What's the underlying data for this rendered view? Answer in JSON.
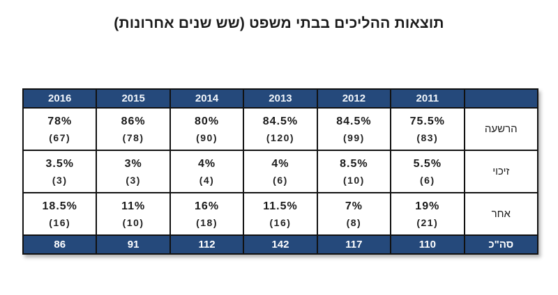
{
  "title": "תוצאות ההליכים בבתי משפט (שש שנים אחרונות)",
  "colors": {
    "header_bg": "#25497B",
    "border": "#111111",
    "header_text": "#F2F6FB",
    "body_text": "#1A1A1A",
    "page_bg": "#FFFFFF"
  },
  "table": {
    "years": [
      "2016",
      "2015",
      "2014",
      "2013",
      "2012",
      "2011"
    ],
    "corner_label": "",
    "rows": [
      {
        "label": "הרשעה",
        "cells": [
          {
            "pct": "78%",
            "count": "(67)"
          },
          {
            "pct": "86%",
            "count": "(78)"
          },
          {
            "pct": "80%",
            "count": "(90)"
          },
          {
            "pct": "84.5%",
            "count": "(120)"
          },
          {
            "pct": "84.5%",
            "count": "(99)"
          },
          {
            "pct": "75.5%",
            "count": "(83)"
          }
        ]
      },
      {
        "label": "זיכוי",
        "cells": [
          {
            "pct": "3.5%",
            "count": "(3)"
          },
          {
            "pct": "3%",
            "count": "(3)"
          },
          {
            "pct": "4%",
            "count": "(4)"
          },
          {
            "pct": "4%",
            "count": "(6)"
          },
          {
            "pct": "8.5%",
            "count": "(10)"
          },
          {
            "pct": "5.5%",
            "count": "(6)"
          }
        ]
      },
      {
        "label": "אחר",
        "cells": [
          {
            "pct": "18.5%",
            "count": "(16)"
          },
          {
            "pct": "11%",
            "count": "(10)"
          },
          {
            "pct": "16%",
            "count": "(18)"
          },
          {
            "pct": "11.5%",
            "count": "(16)"
          },
          {
            "pct": "7%",
            "count": "(8)"
          },
          {
            "pct": "19%",
            "count": "(21)"
          }
        ]
      }
    ],
    "total": {
      "label": "סה\"כ",
      "values": [
        "86",
        "91",
        "112",
        "142",
        "117",
        "110"
      ]
    }
  },
  "chart_data": {
    "type": "table",
    "title": "תוצאות ההליכים בבתי משפט (שש שנים אחרונות)",
    "categories": [
      "2016",
      "2015",
      "2014",
      "2013",
      "2012",
      "2011"
    ],
    "series": [
      {
        "name": "הרשעה",
        "percent": [
          78,
          86,
          80,
          84.5,
          84.5,
          75.5
        ],
        "count": [
          67,
          78,
          90,
          120,
          99,
          83
        ]
      },
      {
        "name": "זיכוי",
        "percent": [
          3.5,
          3,
          4,
          4,
          8.5,
          5.5
        ],
        "count": [
          3,
          3,
          4,
          6,
          10,
          6
        ]
      },
      {
        "name": "אחר",
        "percent": [
          18.5,
          11,
          16,
          11.5,
          7,
          19
        ],
        "count": [
          16,
          10,
          18,
          16,
          8,
          21
        ]
      },
      {
        "name": "סה\"כ",
        "count": [
          86,
          91,
          112,
          142,
          117,
          110
        ]
      }
    ],
    "notes": "Percentages with absolute counts in parentheses; bottom blue row holds column totals; rightmost column holds Hebrew row labels"
  }
}
